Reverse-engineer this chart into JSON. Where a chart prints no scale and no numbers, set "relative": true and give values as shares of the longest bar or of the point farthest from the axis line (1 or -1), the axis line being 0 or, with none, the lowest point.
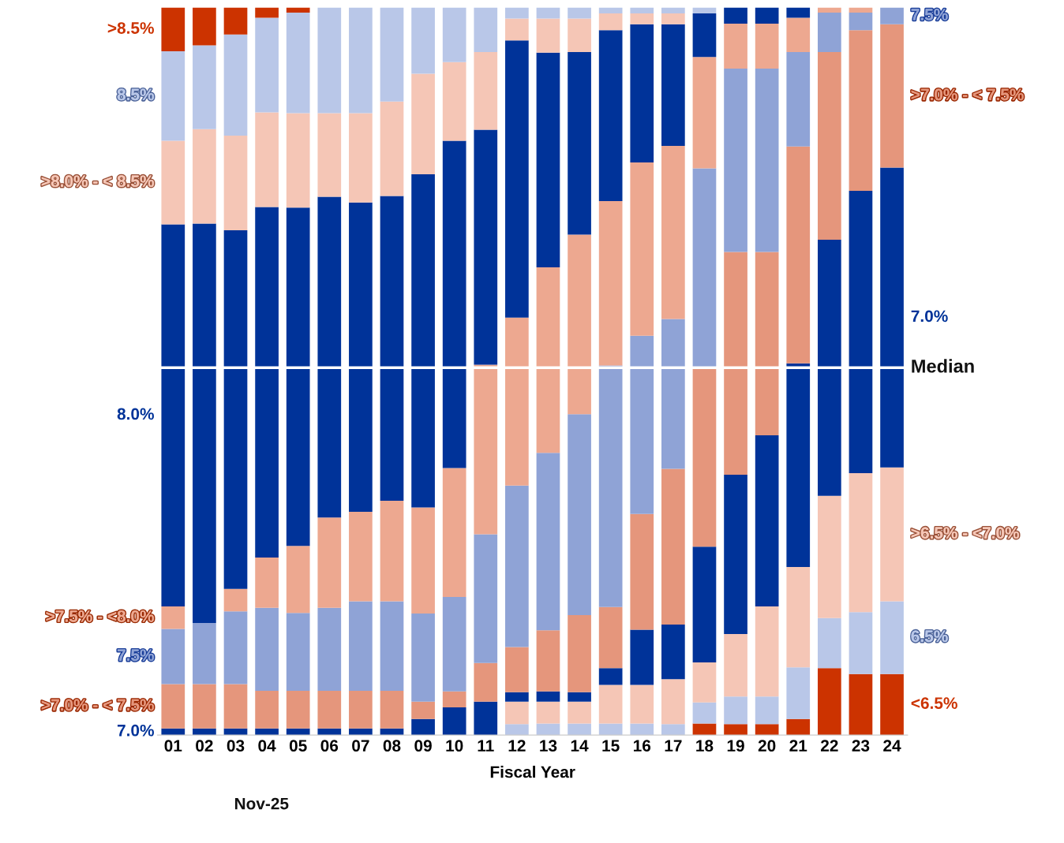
{
  "chart_data": {
    "type": "bar",
    "stacked": true,
    "relative": true,
    "xlabel": "Fiscal Year",
    "categories": [
      "01",
      "02",
      "03",
      "04",
      "05",
      "06",
      "07",
      "08",
      "09",
      "10",
      "11",
      "12",
      "13",
      "14",
      "15",
      "16",
      "17",
      "18",
      "19",
      "20",
      "21",
      "22",
      "23",
      "24"
    ],
    "series": [
      {
        "name": "<6.5%",
        "color": "#cc3300",
        "values": [
          0,
          0,
          0,
          0,
          0,
          0,
          0,
          0,
          0,
          0,
          0,
          0,
          0,
          0,
          0,
          0,
          0,
          0.016,
          0.015,
          0.015,
          0.022,
          0.092,
          0.084,
          0.084
        ]
      },
      {
        "name": "6.5%",
        "color": "#b9c7e8",
        "values": [
          0,
          0,
          0,
          0,
          0,
          0,
          0,
          0,
          0,
          0,
          0,
          0.015,
          0.016,
          0.016,
          0.016,
          0.016,
          0.015,
          0.029,
          0.038,
          0.038,
          0.071,
          0.069,
          0.085,
          0.1
        ]
      },
      {
        "name": ">6.5% - <7.0%",
        "color": "#f5c6b6",
        "values": [
          0,
          0,
          0,
          0,
          0,
          0,
          0,
          0,
          0,
          0,
          0,
          0.031,
          0.03,
          0.03,
          0.053,
          0.053,
          0.062,
          0.055,
          0.086,
          0.124,
          0.138,
          0.168,
          0.191,
          0.184
        ]
      },
      {
        "name": "7.0%",
        "color": "#003399",
        "values": [
          0.009,
          0.009,
          0.009,
          0.009,
          0.009,
          0.009,
          0.009,
          0.009,
          0.022,
          0.038,
          0.046,
          0.013,
          0.014,
          0.013,
          0.023,
          0.076,
          0.075,
          0.159,
          0.219,
          0.235,
          0.28,
          0.352,
          0.388,
          0.412
        ]
      },
      {
        "name": ">7.0% - < 7.5%",
        "color": "#e5967c",
        "values": [
          0.061,
          0.061,
          0.061,
          0.052,
          0.052,
          0.052,
          0.052,
          0.052,
          0.024,
          0.022,
          0.053,
          0.062,
          0.084,
          0.106,
          0.084,
          0.159,
          0.214,
          0.247,
          0.306,
          0.252,
          0.298,
          0.258,
          0.221,
          0.197
        ]
      },
      {
        "name": "7.5%",
        "color": "#8fa3d6",
        "values": [
          0.076,
          0.084,
          0.1,
          0.114,
          0.107,
          0.114,
          0.123,
          0.123,
          0.121,
          0.13,
          0.177,
          0.222,
          0.244,
          0.276,
          0.332,
          0.245,
          0.206,
          0.273,
          0.252,
          0.252,
          0.13,
          0.054,
          0.024,
          0.023
        ]
      },
      {
        "name": ">7.5% - <8.0%",
        "color": "#eda890",
        "values": [
          0.031,
          0,
          0.031,
          0.069,
          0.092,
          0.124,
          0.123,
          0.138,
          0.146,
          0.177,
          0.233,
          0.231,
          0.255,
          0.247,
          0.226,
          0.238,
          0.238,
          0.153,
          0.062,
          0.062,
          0.047,
          0.007,
          0.007,
          0
        ]
      },
      {
        "name": "8.0%",
        "color": "#003399",
        "values": [
          0.525,
          0.549,
          0.493,
          0.482,
          0.465,
          0.441,
          0.425,
          0.419,
          0.458,
          0.45,
          0.323,
          0.381,
          0.295,
          0.251,
          0.235,
          0.19,
          0.167,
          0.06,
          0.022,
          0.022,
          0.014,
          0,
          0,
          0
        ]
      },
      {
        "name": ">8.0% - < 8.5%",
        "color": "#f5c6b6",
        "values": [
          0.115,
          0.13,
          0.13,
          0.13,
          0.13,
          0.115,
          0.123,
          0.13,
          0.138,
          0.108,
          0.107,
          0.03,
          0.047,
          0.046,
          0.023,
          0.015,
          0.015,
          0,
          0,
          0,
          0,
          0,
          0,
          0
        ]
      },
      {
        "name": "8.5%",
        "color": "#b9c7e8",
        "values": [
          0.123,
          0.115,
          0.139,
          0.13,
          0.138,
          0.145,
          0.145,
          0.129,
          0.091,
          0.075,
          0.061,
          0.015,
          0.015,
          0.015,
          0.008,
          0.008,
          0.008,
          0.008,
          0,
          0,
          0,
          0,
          0,
          0
        ]
      },
      {
        "name": ">8.5%",
        "color": "#cc3300",
        "values": [
          0.06,
          0.052,
          0.037,
          0.014,
          0.007,
          0,
          0,
          0,
          0,
          0,
          0,
          0,
          0,
          0,
          0,
          0,
          0,
          0,
          0,
          0,
          0,
          0,
          0,
          0
        ]
      }
    ],
    "ref_lines": [
      {
        "axis": "y",
        "value": 0.505,
        "label": "Median",
        "color": "#ffffff"
      }
    ],
    "annotations": [
      "Nov-25"
    ]
  }
}
